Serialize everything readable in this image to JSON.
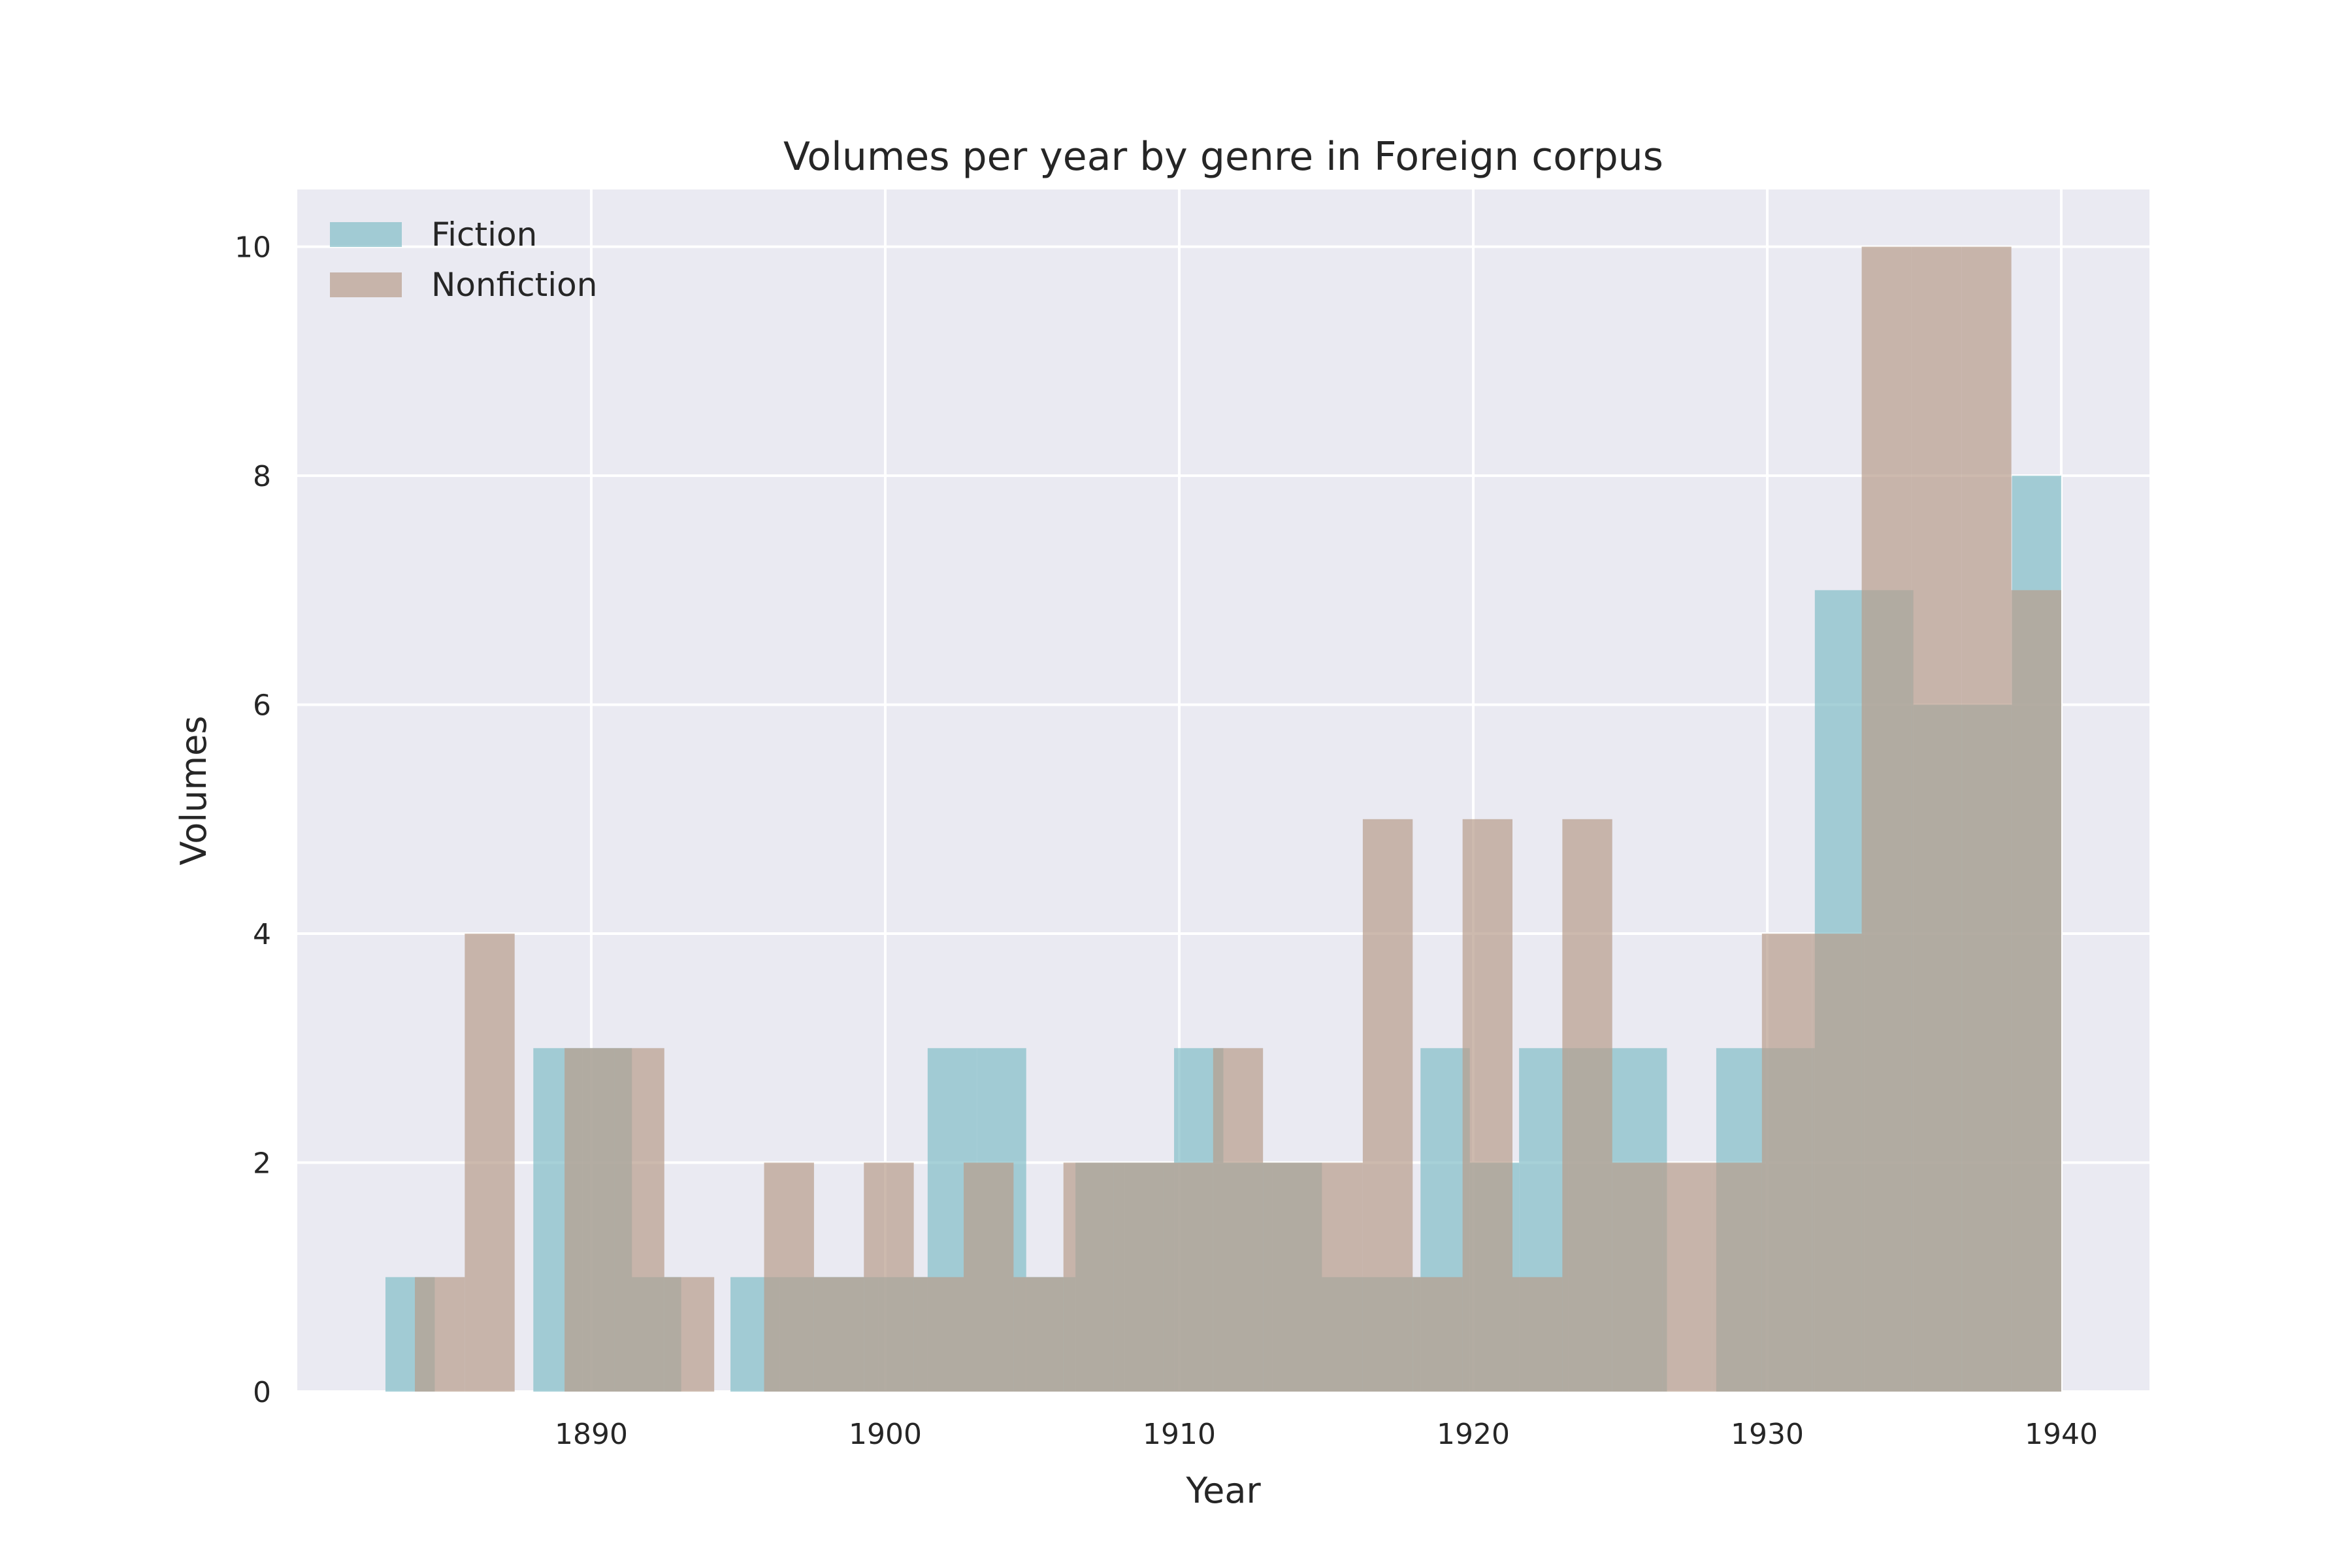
{
  "chart_data": {
    "type": "bar",
    "subtype": "overlapping-histogram",
    "title": "Volumes per year by genre in Foreign corpus",
    "xlabel": "Year",
    "ylabel": "Volumes",
    "xlim": [
      1880,
      1943
    ],
    "ylim": [
      0,
      10.5
    ],
    "xticks": [
      1890,
      1900,
      1910,
      1920,
      1930,
      1940
    ],
    "yticks": [
      0,
      2,
      4,
      6,
      8,
      10
    ],
    "grid": true,
    "legend_position": "top-left",
    "background": "#eaeaf2",
    "series": [
      {
        "name": "Fiction",
        "color": "#82bec8",
        "opacity": 0.7,
        "bin_start": 1883.0,
        "bin_end": 1940.0,
        "values": [
          1,
          0,
          0,
          3,
          3,
          1,
          0,
          1,
          1,
          1,
          1,
          3,
          3,
          1,
          2,
          2,
          3,
          2,
          2,
          1,
          1,
          3,
          2,
          3,
          3,
          3,
          0,
          3,
          3,
          7,
          7,
          6,
          6,
          8
        ]
      },
      {
        "name": "Nonfiction",
        "color": "#b89c8b",
        "opacity": 0.7,
        "bin_start": 1884.0,
        "bin_end": 1940.0,
        "values": [
          1,
          4,
          0,
          3,
          3,
          1,
          0,
          2,
          1,
          2,
          1,
          2,
          1,
          2,
          2,
          2,
          3,
          2,
          2,
          5,
          1,
          5,
          1,
          5,
          2,
          2,
          2,
          4,
          4,
          10,
          10,
          10,
          7
        ]
      }
    ]
  }
}
